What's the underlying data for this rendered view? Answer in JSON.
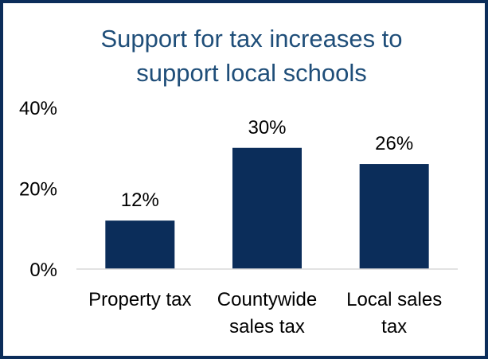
{
  "chart_data": {
    "type": "bar",
    "title_lines": [
      "Support for tax increases to",
      "support local schools"
    ],
    "categories": [
      [
        "Property tax"
      ],
      [
        "Countywide",
        "sales tax"
      ],
      [
        "Local sales",
        "tax"
      ]
    ],
    "values": [
      12,
      30,
      26
    ],
    "data_labels": [
      "12%",
      "30%",
      "26%"
    ],
    "y_ticks": [
      {
        "value": 0,
        "label": "0%"
      },
      {
        "value": 20,
        "label": "20%"
      },
      {
        "value": 40,
        "label": "40%"
      }
    ],
    "ylim": [
      0,
      40
    ],
    "xlabel": "",
    "ylabel": "",
    "grid": false,
    "legend": "none",
    "bar_color": "#0b2d5a",
    "title_color": "#1f4e79",
    "border_color": "#0b2d5a",
    "axis_color": "#d9d9d9"
  }
}
